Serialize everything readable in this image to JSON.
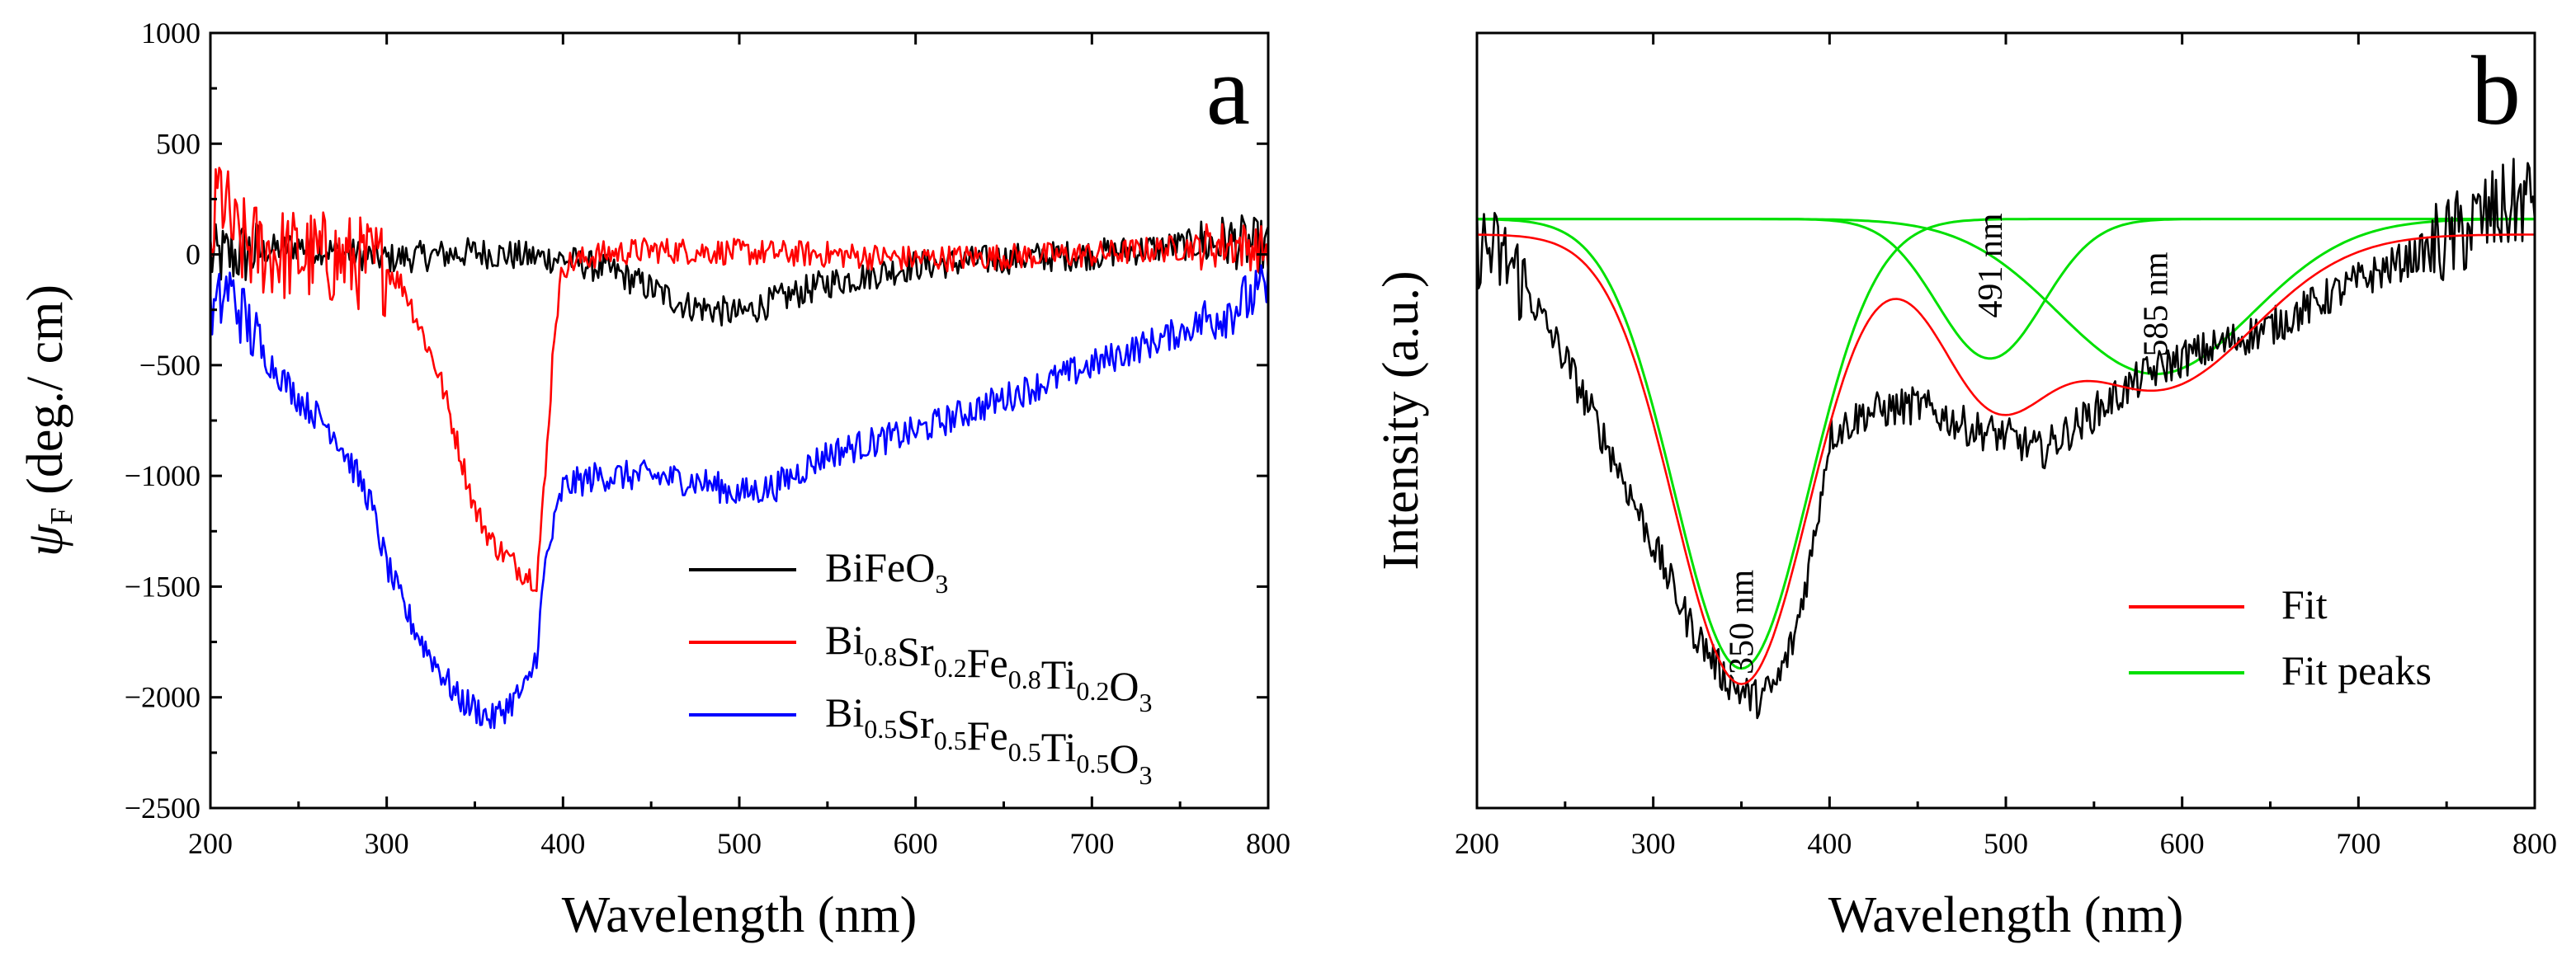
{
  "chart_data": [
    {
      "panel": "a",
      "type": "line",
      "title": "",
      "xlabel": "Wavelength (nm)",
      "ylabel": {
        "psi": "ψ",
        "sub": "F",
        "units": " (deg./ cm)"
      },
      "xlim": [
        200,
        800
      ],
      "ylim": [
        -2500,
        1000
      ],
      "xticks": [
        200,
        300,
        400,
        500,
        600,
        700,
        800
      ],
      "yticks": [
        1000,
        500,
        0,
        -500,
        -1000,
        -1500,
        -2000,
        -2500
      ],
      "ytick_labels": [
        "1000",
        "500",
        "0",
        "−500",
        "−1000",
        "−1500",
        "−2000",
        "−2500"
      ],
      "panel_label": "a",
      "legend_position": "lower-right",
      "series": [
        {
          "name": "BiFeO3",
          "label_parts": [
            [
              "Bi",
              ""
            ],
            [
              "Fe",
              ""
            ],
            [
              "O",
              "3"
            ]
          ],
          "color": "#000000",
          "noise_amp": 70,
          "x": [
            200,
            250,
            300,
            350,
            380,
            400,
            430,
            470,
            500,
            520,
            550,
            600,
            650,
            700,
            750,
            780,
            800
          ],
          "y": [
            -20,
            40,
            -20,
            10,
            -10,
            -20,
            -80,
            -230,
            -270,
            -210,
            -130,
            -50,
            -20,
            0,
            40,
            60,
            30
          ]
        },
        {
          "name": "Bi0.8Sr0.2Fe0.8Ti0.2O3",
          "label_parts": [
            [
              "Bi",
              "0.8"
            ],
            [
              "Sr",
              "0.2"
            ],
            [
              "Fe",
              "0.8"
            ],
            [
              "Ti",
              "0.2"
            ],
            [
              "O",
              "3"
            ]
          ],
          "color": "#ff0000",
          "noise_amp": 60,
          "x": [
            200,
            205,
            215,
            240,
            270,
            300,
            310,
            320,
            330,
            340,
            350,
            360,
            375,
            385,
            390,
            395,
            400,
            420,
            450,
            500,
            550,
            600,
            650,
            700,
            750,
            780,
            800
          ],
          "y": [
            0,
            300,
            50,
            0,
            -20,
            -60,
            -150,
            -350,
            -550,
            -850,
            -1150,
            -1300,
            -1420,
            -1470,
            -1000,
            -350,
            -50,
            0,
            20,
            10,
            0,
            -20,
            -10,
            0,
            30,
            50,
            20
          ],
          "noise_by_range": [
            [
              200,
              300,
              220
            ]
          ]
        },
        {
          "name": "Bi0.5Sr0.5Fe0.5Ti0.5O3",
          "label_parts": [
            [
              "Bi",
              "0.5"
            ],
            [
              "Sr",
              "0.5"
            ],
            [
              "Fe",
              "0.5"
            ],
            [
              "Ti",
              "0.5"
            ],
            [
              "O",
              "3"
            ]
          ],
          "color": "#0000ff",
          "noise_amp": 70,
          "x": [
            200,
            210,
            230,
            250,
            270,
            290,
            300,
            310,
            320,
            340,
            360,
            380,
            385,
            390,
            400,
            420,
            450,
            480,
            500,
            520,
            550,
            600,
            650,
            700,
            750,
            790,
            800
          ],
          "y": [
            -300,
            -150,
            -450,
            -650,
            -800,
            -1100,
            -1400,
            -1600,
            -1750,
            -2000,
            -2100,
            -1950,
            -1800,
            -1400,
            -1050,
            -1000,
            -1000,
            -1030,
            -1080,
            -1050,
            -900,
            -800,
            -650,
            -500,
            -350,
            -200,
            -150
          ]
        }
      ]
    },
    {
      "panel": "b",
      "type": "line",
      "title": "",
      "xlabel": "Wavelength (nm)",
      "ylabel": "Intensity (a.u.)",
      "xlim": [
        200,
        800
      ],
      "ylim": [
        0,
        1
      ],
      "xticks": [
        200,
        300,
        400,
        500,
        600,
        700,
        800
      ],
      "yticks": [],
      "panel_label": "b",
      "legend_position": "lower-right",
      "legend": [
        {
          "label": "Fit",
          "color": "#ff0000"
        },
        {
          "label": "Fit peaks",
          "color": "#00e000"
        }
      ],
      "data_series": {
        "name": "measured",
        "color": "#000000",
        "noise_amp": 0.025,
        "x": [
          200,
          220,
          250,
          280,
          300,
          320,
          340,
          350,
          360,
          370,
          380,
          390,
          400,
          420,
          450,
          480,
          500,
          520,
          550,
          580,
          600,
          650,
          700,
          750,
          770,
          800
        ],
        "y": [
          0.73,
          0.7,
          0.58,
          0.44,
          0.34,
          0.24,
          0.17,
          0.15,
          0.14,
          0.16,
          0.22,
          0.33,
          0.48,
          0.51,
          0.52,
          0.49,
          0.48,
          0.46,
          0.51,
          0.56,
          0.58,
          0.62,
          0.68,
          0.73,
          0.76,
          0.79
        ]
      },
      "fit_series": {
        "name": "Fit",
        "color": "#ff0000",
        "baseline": 0.74,
        "slope_region": {
          "start": 540,
          "end": 800,
          "value_at_end": 0.76
        }
      },
      "peaks": [
        {
          "label": "350 nm",
          "center": 350,
          "depth": 0.58,
          "width": 38,
          "annotation_pos": [
            350,
            0.24
          ]
        },
        {
          "label": "491 nm",
          "center": 491,
          "depth": 0.18,
          "width": 30,
          "annotation_pos": [
            491,
            0.7
          ]
        },
        {
          "label": "585 nm",
          "center": 585,
          "depth": 0.2,
          "width": 55,
          "annotation_pos": [
            585,
            0.65
          ]
        }
      ],
      "peak_baseline": 0.76,
      "peak_color": "#00e000"
    }
  ]
}
